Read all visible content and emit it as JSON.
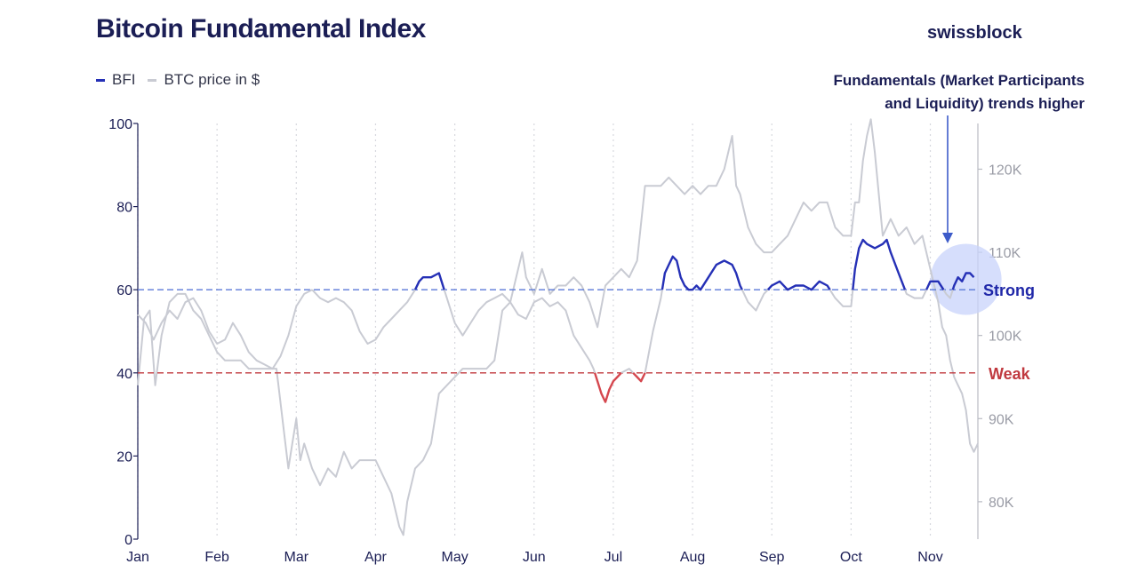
{
  "title": "Bitcoin Fundamental Index",
  "brand": "swissblock",
  "legend": {
    "bfi": "BFI",
    "btc": "BTC price in $"
  },
  "annotation": {
    "line1": "Fundamentals (Market Participants",
    "line2": "and Liquidity) trends higher"
  },
  "colors": {
    "bfi": "#2530b6",
    "bfi_weak": "#d5484f",
    "btc": "#c9cbd3",
    "strong_line": "#5b79d8",
    "weak_line": "#c0393f",
    "highlight": "#c8d3fb"
  },
  "chart_data": {
    "type": "line",
    "title": "Bitcoin Fundamental Index",
    "x_labels": [
      "Jan",
      "Feb",
      "Mar",
      "Apr",
      "May",
      "Jun",
      "Jul",
      "Aug",
      "Sep",
      "Oct",
      "Nov"
    ],
    "x_range": [
      0,
      10.6
    ],
    "y_left": {
      "ticks": [
        0,
        20,
        40,
        60,
        80,
        100
      ],
      "range": [
        0,
        100
      ]
    },
    "y_right": {
      "ticks": [
        80,
        90,
        100,
        110,
        120
      ],
      "tick_labels": [
        "80K",
        "90K",
        "100K",
        "110K",
        "120K"
      ],
      "range": [
        75.5,
        125.5
      ],
      "unit": "K $"
    },
    "reference_lines": [
      {
        "name": "Strong",
        "value": 60
      },
      {
        "name": "Weak",
        "value": 40
      }
    ],
    "series": [
      {
        "name": "BFI",
        "axis": "left",
        "points": [
          [
            0.0,
            54
          ],
          [
            0.1,
            52
          ],
          [
            0.2,
            48
          ],
          [
            0.3,
            52
          ],
          [
            0.4,
            55
          ],
          [
            0.5,
            53
          ],
          [
            0.6,
            57
          ],
          [
            0.7,
            58
          ],
          [
            0.8,
            55
          ],
          [
            0.9,
            50
          ],
          [
            1.0,
            47
          ],
          [
            1.1,
            48
          ],
          [
            1.2,
            52
          ],
          [
            1.3,
            49
          ],
          [
            1.4,
            45
          ],
          [
            1.5,
            43
          ],
          [
            1.6,
            42
          ],
          [
            1.7,
            41
          ],
          [
            1.8,
            44
          ],
          [
            1.9,
            49
          ],
          [
            2.0,
            56
          ],
          [
            2.1,
            59
          ],
          [
            2.2,
            60
          ],
          [
            2.3,
            58
          ],
          [
            2.4,
            57
          ],
          [
            2.5,
            58
          ],
          [
            2.6,
            57
          ],
          [
            2.7,
            55
          ],
          [
            2.8,
            50
          ],
          [
            2.9,
            47
          ],
          [
            3.0,
            48
          ],
          [
            3.1,
            51
          ],
          [
            3.2,
            53
          ],
          [
            3.3,
            55
          ],
          [
            3.4,
            57
          ],
          [
            3.5,
            60
          ],
          [
            3.55,
            62
          ],
          [
            3.6,
            63
          ],
          [
            3.7,
            63
          ],
          [
            3.8,
            64
          ],
          [
            3.85,
            61
          ],
          [
            3.9,
            58
          ],
          [
            4.0,
            52
          ],
          [
            4.1,
            49
          ],
          [
            4.2,
            52
          ],
          [
            4.3,
            55
          ],
          [
            4.4,
            57
          ],
          [
            4.5,
            58
          ],
          [
            4.6,
            59
          ],
          [
            4.7,
            57
          ],
          [
            4.8,
            54
          ],
          [
            4.9,
            53
          ],
          [
            5.0,
            57
          ],
          [
            5.1,
            58
          ],
          [
            5.2,
            56
          ],
          [
            5.3,
            57
          ],
          [
            5.4,
            55
          ],
          [
            5.5,
            49
          ],
          [
            5.6,
            46
          ],
          [
            5.7,
            43
          ],
          [
            5.75,
            41
          ],
          [
            5.8,
            38
          ],
          [
            5.85,
            35
          ],
          [
            5.9,
            33
          ],
          [
            5.95,
            36
          ],
          [
            6.0,
            38
          ],
          [
            6.05,
            39
          ],
          [
            6.1,
            40
          ],
          [
            6.2,
            41
          ],
          [
            6.3,
            39
          ],
          [
            6.35,
            38
          ],
          [
            6.4,
            40
          ],
          [
            6.5,
            50
          ],
          [
            6.6,
            58
          ],
          [
            6.65,
            64
          ],
          [
            6.7,
            66
          ],
          [
            6.75,
            68
          ],
          [
            6.8,
            67
          ],
          [
            6.85,
            63
          ],
          [
            6.9,
            61
          ],
          [
            6.95,
            60
          ],
          [
            7.0,
            60
          ],
          [
            7.05,
            61
          ],
          [
            7.1,
            60
          ],
          [
            7.2,
            63
          ],
          [
            7.3,
            66
          ],
          [
            7.4,
            67
          ],
          [
            7.5,
            66
          ],
          [
            7.55,
            64
          ],
          [
            7.6,
            61
          ],
          [
            7.7,
            57
          ],
          [
            7.8,
            55
          ],
          [
            7.85,
            57
          ],
          [
            7.9,
            59
          ],
          [
            8.0,
            61
          ],
          [
            8.1,
            62
          ],
          [
            8.2,
            60
          ],
          [
            8.3,
            61
          ],
          [
            8.4,
            61
          ],
          [
            8.5,
            60
          ],
          [
            8.6,
            62
          ],
          [
            8.7,
            61
          ],
          [
            8.8,
            58
          ],
          [
            8.9,
            56
          ],
          [
            9.0,
            56
          ],
          [
            9.05,
            65
          ],
          [
            9.1,
            70
          ],
          [
            9.15,
            72
          ],
          [
            9.2,
            71
          ],
          [
            9.3,
            70
          ],
          [
            9.4,
            71
          ],
          [
            9.45,
            72
          ],
          [
            9.5,
            69
          ],
          [
            9.6,
            64
          ],
          [
            9.7,
            59
          ],
          [
            9.8,
            58
          ],
          [
            9.9,
            58
          ],
          [
            10.0,
            62
          ],
          [
            10.1,
            62
          ],
          [
            10.2,
            59
          ],
          [
            10.25,
            58
          ],
          [
            10.3,
            61
          ],
          [
            10.35,
            63
          ],
          [
            10.4,
            62
          ],
          [
            10.45,
            64
          ],
          [
            10.5,
            64
          ],
          [
            10.55,
            63
          ]
        ]
      },
      {
        "name": "BTC price in $",
        "axis": "right",
        "unit": "K $",
        "points": [
          [
            0.0,
            94
          ],
          [
            0.08,
            102
          ],
          [
            0.15,
            103
          ],
          [
            0.22,
            94
          ],
          [
            0.3,
            100
          ],
          [
            0.4,
            104
          ],
          [
            0.5,
            105
          ],
          [
            0.6,
            105
          ],
          [
            0.7,
            103
          ],
          [
            0.8,
            102
          ],
          [
            0.9,
            100
          ],
          [
            1.0,
            98
          ],
          [
            1.1,
            97
          ],
          [
            1.2,
            97
          ],
          [
            1.3,
            97
          ],
          [
            1.4,
            96
          ],
          [
            1.5,
            96
          ],
          [
            1.6,
            96
          ],
          [
            1.75,
            96
          ],
          [
            1.85,
            88
          ],
          [
            1.9,
            84
          ],
          [
            1.95,
            87
          ],
          [
            2.0,
            90
          ],
          [
            2.05,
            85
          ],
          [
            2.1,
            87
          ],
          [
            2.2,
            84
          ],
          [
            2.3,
            82
          ],
          [
            2.4,
            84
          ],
          [
            2.5,
            83
          ],
          [
            2.6,
            86
          ],
          [
            2.7,
            84
          ],
          [
            2.8,
            85
          ],
          [
            2.9,
            85
          ],
          [
            3.0,
            85
          ],
          [
            3.1,
            83
          ],
          [
            3.2,
            81
          ],
          [
            3.3,
            77
          ],
          [
            3.35,
            76
          ],
          [
            3.4,
            80
          ],
          [
            3.5,
            84
          ],
          [
            3.6,
            85
          ],
          [
            3.7,
            87
          ],
          [
            3.8,
            93
          ],
          [
            3.9,
            94
          ],
          [
            4.0,
            95
          ],
          [
            4.1,
            96
          ],
          [
            4.2,
            96
          ],
          [
            4.3,
            96
          ],
          [
            4.4,
            96
          ],
          [
            4.5,
            97
          ],
          [
            4.6,
            103
          ],
          [
            4.7,
            104
          ],
          [
            4.8,
            108
          ],
          [
            4.85,
            110
          ],
          [
            4.9,
            107
          ],
          [
            5.0,
            105
          ],
          [
            5.1,
            108
          ],
          [
            5.2,
            105
          ],
          [
            5.3,
            106
          ],
          [
            5.4,
            106
          ],
          [
            5.5,
            107
          ],
          [
            5.6,
            106
          ],
          [
            5.7,
            104
          ],
          [
            5.8,
            101
          ],
          [
            5.9,
            106
          ],
          [
            6.0,
            107
          ],
          [
            6.1,
            108
          ],
          [
            6.2,
            107
          ],
          [
            6.3,
            109
          ],
          [
            6.4,
            118
          ],
          [
            6.5,
            118
          ],
          [
            6.6,
            118
          ],
          [
            6.7,
            119
          ],
          [
            6.8,
            118
          ],
          [
            6.9,
            117
          ],
          [
            7.0,
            118
          ],
          [
            7.1,
            117
          ],
          [
            7.2,
            118
          ],
          [
            7.3,
            118
          ],
          [
            7.4,
            120
          ],
          [
            7.5,
            124
          ],
          [
            7.55,
            118
          ],
          [
            7.6,
            117
          ],
          [
            7.7,
            113
          ],
          [
            7.8,
            111
          ],
          [
            7.9,
            110
          ],
          [
            8.0,
            110
          ],
          [
            8.1,
            111
          ],
          [
            8.2,
            112
          ],
          [
            8.3,
            114
          ],
          [
            8.4,
            116
          ],
          [
            8.5,
            115
          ],
          [
            8.6,
            116
          ],
          [
            8.7,
            116
          ],
          [
            8.8,
            113
          ],
          [
            8.9,
            112
          ],
          [
            9.0,
            112
          ],
          [
            9.05,
            116
          ],
          [
            9.1,
            116
          ],
          [
            9.15,
            121
          ],
          [
            9.2,
            124
          ],
          [
            9.25,
            126
          ],
          [
            9.3,
            122
          ],
          [
            9.4,
            112
          ],
          [
            9.5,
            114
          ],
          [
            9.6,
            112
          ],
          [
            9.7,
            113
          ],
          [
            9.8,
            111
          ],
          [
            9.9,
            112
          ],
          [
            10.0,
            108
          ],
          [
            10.1,
            104
          ],
          [
            10.15,
            101
          ],
          [
            10.2,
            100
          ],
          [
            10.25,
            97
          ],
          [
            10.3,
            95
          ],
          [
            10.35,
            94
          ],
          [
            10.4,
            93
          ],
          [
            10.45,
            91
          ],
          [
            10.5,
            87
          ],
          [
            10.55,
            86
          ],
          [
            10.6,
            87
          ]
        ]
      }
    ]
  }
}
